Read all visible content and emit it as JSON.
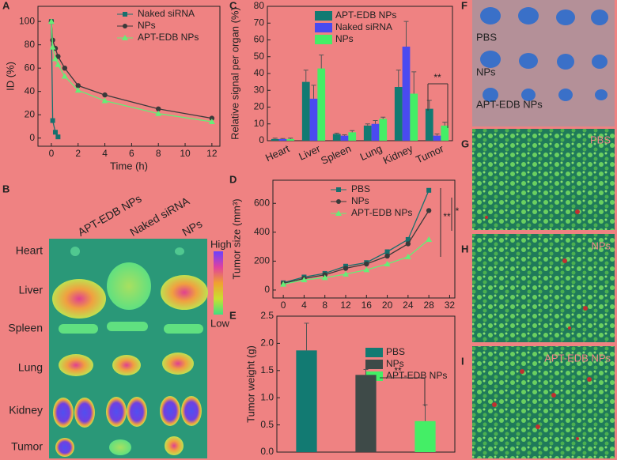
{
  "chart_data": [
    {
      "type": "line",
      "panel": "A",
      "xlabel": "Time (h)",
      "ylabel": "ID (%)",
      "x": [
        0,
        0.1,
        0.3,
        0.5,
        1,
        2,
        4,
        8,
        12
      ],
      "series": [
        {
          "name": "Naked siRNA",
          "color": "#17706e",
          "marker": "square",
          "values": [
            100,
            15,
            5,
            1,
            null,
            null,
            null,
            null,
            null
          ]
        },
        {
          "name": "NPs",
          "color": "#3a3a3a",
          "marker": "circle",
          "values": [
            100,
            84,
            77,
            70,
            60,
            45,
            37,
            25,
            17
          ]
        },
        {
          "name": "APT-EDB NPs",
          "color": "#66ee77",
          "marker": "triangle",
          "values": [
            100,
            78,
            68,
            63,
            53,
            41,
            32,
            21,
            14
          ]
        }
      ],
      "xlim": [
        -1,
        12.6
      ],
      "xticks": [
        0,
        2,
        4,
        6,
        8,
        10,
        12
      ],
      "ylim": [
        -7,
        113
      ],
      "yticks": [
        0,
        20,
        40,
        60,
        80,
        100
      ]
    },
    {
      "type": "bar",
      "panel": "C",
      "ylabel": "Relative signal per organ (%)",
      "categories": [
        "Heart",
        "Liver",
        "Spleen",
        "Lung",
        "Kidney",
        "Tumor"
      ],
      "series": [
        {
          "name": "APT-EDB NPs",
          "color": "#127a72",
          "values": [
            1,
            35,
            4,
            9,
            32,
            19
          ],
          "errors": [
            0.5,
            7,
            0.5,
            1,
            10,
            5
          ]
        },
        {
          "name": "Naked siRNA",
          "color": "#4a4af0",
          "values": [
            1,
            25,
            3,
            10,
            56,
            3
          ],
          "errors": [
            0.3,
            8,
            0.5,
            2,
            15,
            1
          ]
        },
        {
          "name": "NPs",
          "color": "#44ee66",
          "values": [
            1,
            43,
            5,
            13,
            28,
            9
          ],
          "errors": [
            0.5,
            8,
            1,
            1,
            13,
            2
          ]
        }
      ],
      "ylim": [
        0,
        80
      ],
      "yticks": [
        0,
        10,
        20,
        30,
        40,
        50,
        60,
        70,
        80
      ],
      "annotations": [
        "**"
      ]
    },
    {
      "type": "line",
      "panel": "D",
      "ylabel": "Tumor size (mm³)",
      "x": [
        0,
        4,
        8,
        12,
        16,
        20,
        24,
        28
      ],
      "series": [
        {
          "name": "PBS",
          "color": "#17706e",
          "marker": "square",
          "values": [
            50,
            90,
            115,
            165,
            190,
            265,
            350,
            690
          ]
        },
        {
          "name": "NPs",
          "color": "#3a3a3a",
          "marker": "circle",
          "values": [
            45,
            80,
            105,
            150,
            180,
            235,
            320,
            550
          ]
        },
        {
          "name": "APT-EDB NPs",
          "color": "#66ee77",
          "marker": "triangle",
          "values": [
            40,
            70,
            85,
            110,
            140,
            180,
            230,
            350
          ]
        }
      ],
      "xlim": [
        -2,
        33
      ],
      "xticks": [
        0,
        4,
        8,
        12,
        16,
        20,
        24,
        28,
        32
      ],
      "ylim": [
        -55,
        760
      ],
      "yticks": [
        0,
        200,
        400,
        600
      ],
      "annotations": [
        "*",
        "**"
      ]
    },
    {
      "type": "bar",
      "panel": "E",
      "ylabel": "Tumor weight (g)",
      "series": [
        {
          "name": "PBS",
          "color": "#127a72",
          "values": [
            1.87
          ],
          "errors": [
            0.5
          ]
        },
        {
          "name": "NPs",
          "color": "#3e4a48",
          "values": [
            1.42
          ],
          "errors": [
            0.1
          ]
        },
        {
          "name": "APT-EDB NPs",
          "color": "#44ee66",
          "values": [
            0.57
          ],
          "errors": [
            0.3
          ]
        }
      ],
      "ylim": [
        0,
        2.5
      ],
      "yticks": [
        {
          "value": 0,
          "label": "0.0"
        },
        0.5,
        {
          "value": 1,
          "label": "1.0"
        },
        1.5,
        {
          "value": 2,
          "label": "2.0"
        },
        2.5
      ],
      "annotations": [
        "**"
      ]
    }
  ],
  "panel_b": {
    "panel": "B",
    "columns": [
      "APT-EDB NPs",
      "Naked siRNA",
      "NPs"
    ],
    "rows": [
      "Heart",
      "Liver",
      "Spleen",
      "Lung",
      "Kidney",
      "Tumor"
    ],
    "scale": [
      "High",
      "Low"
    ]
  },
  "panel_f": {
    "panel": "F",
    "rows": [
      "PBS",
      "NPs",
      "APT-EDB NPs"
    ]
  },
  "panels_ghi": [
    {
      "panel": "G",
      "label": "PBS"
    },
    {
      "panel": "H",
      "label": "NPs"
    },
    {
      "panel": "I",
      "label": "APT-EDB NPs"
    }
  ]
}
